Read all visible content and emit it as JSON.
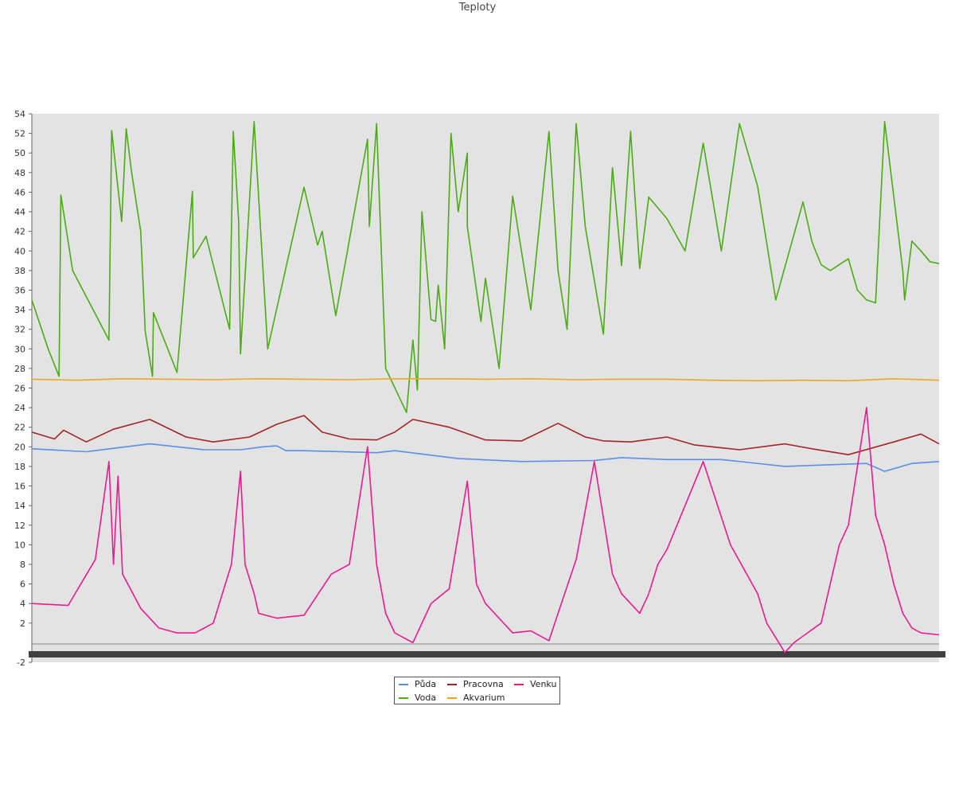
{
  "chart_data": {
    "type": "line",
    "title": "Teploty",
    "xlabel": "",
    "ylabel": "",
    "ylim": [
      -2,
      54
    ],
    "yticks": [
      -2,
      2,
      4,
      6,
      8,
      10,
      12,
      14,
      16,
      18,
      20,
      22,
      24,
      26,
      28,
      30,
      32,
      34,
      36,
      38,
      40,
      42,
      44,
      46,
      48,
      50,
      52,
      54
    ],
    "x_tick_labels_legible": false,
    "grid": false,
    "background": "#e3e3e3",
    "legend": "bottom-center",
    "xlim": [
      0,
      1
    ],
    "series": [
      {
        "name": "Půda",
        "color": "#5b8ee6",
        "x": [
          0.0,
          0.06,
          0.13,
          0.19,
          0.23,
          0.255,
          0.27,
          0.28,
          0.3,
          0.38,
          0.4,
          0.47,
          0.54,
          0.62,
          0.7,
          0.65,
          0.76,
          0.79,
          0.83,
          0.92,
          0.94,
          0.97,
          1.0
        ],
        "y": [
          19.8,
          19.5,
          20.3,
          19.7,
          19.7,
          20.0,
          20.1,
          19.6,
          19.6,
          19.4,
          19.6,
          18.8,
          18.5,
          18.6,
          18.7,
          18.9,
          18.7,
          18.4,
          18.0,
          18.3,
          17.5,
          18.3,
          18.5
        ]
      },
      {
        "name": "Pracovna",
        "color": "#a52424",
        "x": [
          0.0,
          0.025,
          0.035,
          0.06,
          0.09,
          0.13,
          0.17,
          0.2,
          0.24,
          0.27,
          0.3,
          0.32,
          0.35,
          0.38,
          0.4,
          0.42,
          0.46,
          0.5,
          0.54,
          0.58,
          0.61,
          0.63,
          0.66,
          0.7,
          0.73,
          0.76,
          0.78,
          0.83,
          0.86,
          0.9,
          0.95,
          0.98,
          1.0
        ],
        "y": [
          21.5,
          20.8,
          21.7,
          20.5,
          21.8,
          22.8,
          21.0,
          20.5,
          21.0,
          22.3,
          23.2,
          21.5,
          20.8,
          20.7,
          21.5,
          22.8,
          22.0,
          20.7,
          20.6,
          22.4,
          21.0,
          20.6,
          20.5,
          21.0,
          20.2,
          19.9,
          19.7,
          20.3,
          19.8,
          19.2,
          20.5,
          21.3,
          20.3
        ]
      },
      {
        "name": "Voda",
        "color": "#49ad12",
        "x": [
          0.0,
          0.018,
          0.03,
          0.032,
          0.045,
          0.085,
          0.088,
          0.099,
          0.104,
          0.11,
          0.12,
          0.125,
          0.133,
          0.134,
          0.16,
          0.177,
          0.178,
          0.192,
          0.218,
          0.222,
          0.228,
          0.245,
          0.26,
          0.23,
          0.3,
          0.315,
          0.32,
          0.335,
          0.37,
          0.372,
          0.38,
          0.39,
          0.413,
          0.42,
          0.425,
          0.43,
          0.44,
          0.445,
          0.448,
          0.455,
          0.462,
          0.47,
          0.48,
          0.48,
          0.495,
          0.5,
          0.515,
          0.53,
          0.55,
          0.57,
          0.58,
          0.59,
          0.6,
          0.61,
          0.63,
          0.64,
          0.65,
          0.66,
          0.67,
          0.68,
          0.7,
          0.72,
          0.74,
          0.76,
          0.78,
          0.8,
          0.82,
          0.85,
          0.86,
          0.87,
          0.88,
          0.9,
          0.91,
          0.92,
          0.93,
          0.94,
          0.96,
          0.962,
          0.97,
          0.98,
          0.99,
          1.0
        ],
        "y": [
          35.0,
          30.0,
          27.2,
          45.7,
          38.0,
          30.9,
          52.3,
          43.0,
          52.5,
          48.0,
          42.0,
          31.8,
          27.2,
          33.7,
          27.6,
          46.1,
          39.3,
          41.5,
          32.0,
          52.2,
          43.0,
          53.2,
          30.0,
          29.5,
          46.5,
          40.6,
          42.0,
          33.4,
          51.4,
          42.5,
          53.0,
          28.0,
          23.5,
          30.9,
          25.8,
          44.0,
          33.0,
          32.8,
          36.5,
          30.0,
          52.0,
          44.0,
          50.0,
          42.5,
          32.8,
          37.2,
          28.0,
          45.6,
          34.0,
          52.2,
          38.0,
          32.0,
          53.0,
          42.5,
          31.5,
          48.5,
          38.5,
          52.2,
          38.2,
          45.5,
          43.3,
          40.0,
          51.0,
          40.0,
          53.0,
          46.6,
          35.0,
          45.0,
          40.9,
          38.6,
          38.0,
          39.2,
          36.0,
          35.0,
          34.7,
          53.2,
          38.0,
          35.0,
          41.0,
          40.0,
          38.9,
          38.7
        ]
      },
      {
        "name": "Akvarium",
        "color": "#f0a81a",
        "x": [
          0.0,
          0.05,
          0.1,
          0.15,
          0.2,
          0.25,
          0.3,
          0.35,
          0.4,
          0.45,
          0.5,
          0.55,
          0.6,
          0.65,
          0.7,
          0.75,
          0.8,
          0.85,
          0.9,
          0.95,
          1.0
        ],
        "y": [
          26.9,
          26.8,
          26.95,
          26.9,
          26.85,
          26.95,
          26.9,
          26.85,
          26.95,
          26.95,
          26.9,
          26.95,
          26.85,
          26.9,
          26.9,
          26.8,
          26.75,
          26.8,
          26.75,
          26.95,
          26.8
        ]
      },
      {
        "name": "Venku",
        "color": "#ee1990",
        "x": [
          0.0,
          0.04,
          0.07,
          0.085,
          0.09,
          0.095,
          0.1,
          0.12,
          0.14,
          0.16,
          0.18,
          0.2,
          0.22,
          0.23,
          0.235,
          0.245,
          0.25,
          0.27,
          0.3,
          0.33,
          0.35,
          0.37,
          0.38,
          0.385,
          0.39,
          0.4,
          0.42,
          0.44,
          0.46,
          0.48,
          0.49,
          0.5,
          0.53,
          0.55,
          0.57,
          0.58,
          0.6,
          0.62,
          0.64,
          0.65,
          0.66,
          0.67,
          0.68,
          0.69,
          0.7,
          0.74,
          0.77,
          0.8,
          0.81,
          0.82,
          0.83,
          0.84,
          0.87,
          0.89,
          0.9,
          0.92,
          0.93,
          0.94,
          0.95,
          0.96,
          0.97,
          0.98,
          1.0
        ],
        "y": [
          4.0,
          3.8,
          8.5,
          18.5,
          8.0,
          17.0,
          7.0,
          3.5,
          1.5,
          1.0,
          1.0,
          2.0,
          8.0,
          17.5,
          8.0,
          5.0,
          3.0,
          2.5,
          2.8,
          7.0,
          8.0,
          20.0,
          8.0,
          5.5,
          3.0,
          1.0,
          0.0,
          4.0,
          5.5,
          16.5,
          6.0,
          4.0,
          1.0,
          1.2,
          0.2,
          3.0,
          8.5,
          18.5,
          7.0,
          5.0,
          4.0,
          3.0,
          5.0,
          8.0,
          9.5,
          18.5,
          10.0,
          5.0,
          2.0,
          0.5,
          -1.0,
          0.0,
          2.0,
          10.0,
          12.0,
          24.0,
          13.0,
          10.0,
          6.0,
          3.0,
          1.5,
          1.0,
          0.8
        ]
      }
    ]
  }
}
